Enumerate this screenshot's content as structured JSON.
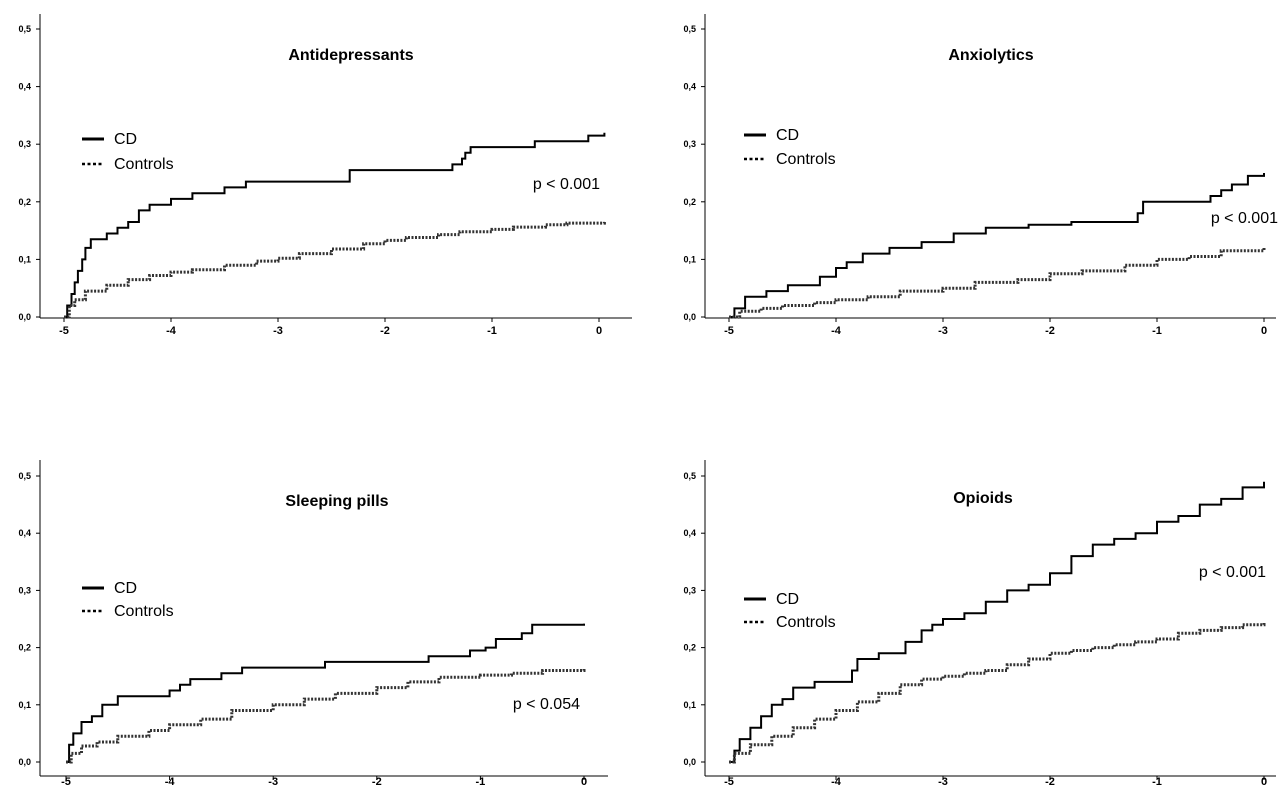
{
  "chart_data": [
    {
      "type": "line",
      "title": "Antidepressants",
      "annotation": "p < 0.001",
      "xlim": [
        -5,
        0
      ],
      "ylim": [
        0,
        0.5
      ],
      "x_ticks": [
        "-5",
        "-4",
        "-3",
        "-2",
        "-1",
        "0"
      ],
      "y_ticks": [
        "0,0",
        "0,1",
        "0,2",
        "0,3",
        "0,4",
        "0,5"
      ],
      "legend": [
        "CD",
        "Controls"
      ],
      "series": [
        {
          "name": "CD",
          "style": "solid",
          "x": [
            -5.0,
            -4.97,
            -4.93,
            -4.9,
            -4.87,
            -4.83,
            -4.8,
            -4.75,
            -4.6,
            -4.5,
            -4.4,
            -4.3,
            -4.2,
            -4.0,
            -3.8,
            -3.5,
            -3.3,
            -3.0,
            -2.5,
            -2.33,
            -2.0,
            -1.7,
            -1.37,
            -1.28,
            -1.25,
            -1.2,
            -1.0,
            -0.6,
            -0.3,
            -0.1,
            0.05
          ],
          "y": [
            0.0,
            0.02,
            0.04,
            0.06,
            0.08,
            0.1,
            0.12,
            0.135,
            0.145,
            0.155,
            0.165,
            0.185,
            0.195,
            0.205,
            0.215,
            0.225,
            0.235,
            0.235,
            0.235,
            0.255,
            0.255,
            0.255,
            0.265,
            0.275,
            0.285,
            0.295,
            0.295,
            0.305,
            0.305,
            0.315,
            0.32
          ]
        },
        {
          "name": "Controls",
          "style": "dotted",
          "x": [
            -5.0,
            -4.95,
            -4.9,
            -4.8,
            -4.6,
            -4.4,
            -4.2,
            -4.0,
            -3.8,
            -3.5,
            -3.2,
            -3.0,
            -2.8,
            -2.5,
            -2.2,
            -2.0,
            -1.8,
            -1.5,
            -1.3,
            -1.0,
            -0.8,
            -0.5,
            -0.3,
            0.05
          ],
          "y": [
            0.0,
            0.02,
            0.03,
            0.045,
            0.055,
            0.065,
            0.072,
            0.078,
            0.082,
            0.09,
            0.097,
            0.102,
            0.11,
            0.118,
            0.127,
            0.133,
            0.138,
            0.143,
            0.148,
            0.152,
            0.156,
            0.16,
            0.163,
            0.165
          ]
        }
      ]
    },
    {
      "type": "line",
      "title": "Anxiolytics",
      "annotation": "p < 0.001",
      "xlim": [
        -5,
        0
      ],
      "ylim": [
        0,
        0.5
      ],
      "x_ticks": [
        "-5",
        "-4",
        "-3",
        "-2",
        "-1",
        "0"
      ],
      "y_ticks": [
        "0,0",
        "0,1",
        "0,2",
        "0,3",
        "0,4",
        "0,5"
      ],
      "legend": [
        "CD",
        "Controls"
      ],
      "series": [
        {
          "name": "CD",
          "style": "solid",
          "x": [
            -5.0,
            -4.95,
            -4.85,
            -4.65,
            -4.45,
            -4.15,
            -4.0,
            -3.9,
            -3.75,
            -3.5,
            -3.2,
            -2.9,
            -2.6,
            -2.2,
            -1.8,
            -1.4,
            -1.18,
            -1.13,
            -0.8,
            -0.5,
            -0.4,
            -0.3,
            -0.15,
            0.0
          ],
          "y": [
            0.0,
            0.015,
            0.035,
            0.045,
            0.055,
            0.07,
            0.085,
            0.095,
            0.11,
            0.12,
            0.13,
            0.145,
            0.155,
            0.16,
            0.165,
            0.165,
            0.18,
            0.2,
            0.2,
            0.21,
            0.22,
            0.23,
            0.245,
            0.25
          ]
        },
        {
          "name": "Controls",
          "style": "dotted",
          "x": [
            -5.0,
            -4.9,
            -4.7,
            -4.5,
            -4.2,
            -4.0,
            -3.7,
            -3.4,
            -3.0,
            -2.7,
            -2.3,
            -2.0,
            -1.7,
            -1.3,
            -1.0,
            -0.7,
            -0.4,
            0.0
          ],
          "y": [
            0.0,
            0.01,
            0.015,
            0.02,
            0.025,
            0.03,
            0.035,
            0.045,
            0.05,
            0.06,
            0.065,
            0.075,
            0.08,
            0.09,
            0.1,
            0.105,
            0.115,
            0.12
          ]
        }
      ]
    },
    {
      "type": "line",
      "title": "Sleeping pills",
      "annotation": "p < 0.054",
      "xlim": [
        -5,
        0
      ],
      "ylim": [
        0,
        0.5
      ],
      "x_ticks": [
        "-5",
        "-4",
        "-3",
        "-2",
        "-1",
        "0"
      ],
      "y_ticks": [
        "0,0",
        "0,1",
        "0,2",
        "0,3",
        "0,4",
        "0,5"
      ],
      "legend": [
        "CD",
        "Controls"
      ],
      "series": [
        {
          "name": "CD",
          "style": "solid",
          "x": [
            -5.0,
            -4.97,
            -4.93,
            -4.85,
            -4.75,
            -4.65,
            -4.5,
            -4.3,
            -4.0,
            -3.9,
            -3.8,
            -3.5,
            -3.3,
            -3.0,
            -2.5,
            -2.0,
            -1.5,
            -1.1,
            -0.95,
            -0.85,
            -0.6,
            -0.5,
            -0.2,
            0.0
          ],
          "y": [
            0.0,
            0.03,
            0.05,
            0.07,
            0.08,
            0.1,
            0.115,
            0.115,
            0.125,
            0.135,
            0.145,
            0.155,
            0.165,
            0.165,
            0.175,
            0.175,
            0.185,
            0.195,
            0.2,
            0.215,
            0.225,
            0.24,
            0.24,
            0.242
          ]
        },
        {
          "name": "Controls",
          "style": "dotted",
          "x": [
            -5.0,
            -4.95,
            -4.85,
            -4.7,
            -4.5,
            -4.2,
            -4.0,
            -3.7,
            -3.4,
            -3.0,
            -2.7,
            -2.4,
            -2.0,
            -1.7,
            -1.4,
            -1.0,
            -0.7,
            -0.4,
            0.0
          ],
          "y": [
            0.0,
            0.015,
            0.028,
            0.035,
            0.045,
            0.055,
            0.065,
            0.075,
            0.09,
            0.1,
            0.11,
            0.12,
            0.13,
            0.14,
            0.148,
            0.152,
            0.155,
            0.16,
            0.165
          ]
        }
      ]
    },
    {
      "type": "line",
      "title": "Opioids",
      "annotation": "p < 0.001",
      "xlim": [
        -5,
        0
      ],
      "ylim": [
        0,
        0.5
      ],
      "x_ticks": [
        "-5",
        "-4",
        "-3",
        "-2",
        "-1",
        "0"
      ],
      "y_ticks": [
        "0,0",
        "0,1",
        "0,2",
        "0,3",
        "0,4",
        "0,5"
      ],
      "legend": [
        "CD",
        "Controls"
      ],
      "series": [
        {
          "name": "CD",
          "style": "solid",
          "x": [
            -5.0,
            -4.95,
            -4.9,
            -4.8,
            -4.7,
            -4.6,
            -4.5,
            -4.4,
            -4.2,
            -3.9,
            -3.85,
            -3.8,
            -3.6,
            -3.35,
            -3.2,
            -3.1,
            -3.0,
            -2.8,
            -2.6,
            -2.4,
            -2.3,
            -2.2,
            -2.0,
            -1.8,
            -1.6,
            -1.4,
            -1.2,
            -1.0,
            -0.8,
            -0.6,
            -0.4,
            -0.2,
            0.0
          ],
          "y": [
            0.0,
            0.02,
            0.04,
            0.06,
            0.08,
            0.1,
            0.11,
            0.13,
            0.14,
            0.14,
            0.16,
            0.18,
            0.19,
            0.21,
            0.23,
            0.24,
            0.25,
            0.26,
            0.28,
            0.3,
            0.3,
            0.31,
            0.33,
            0.36,
            0.38,
            0.39,
            0.4,
            0.42,
            0.43,
            0.45,
            0.46,
            0.48,
            0.49
          ]
        },
        {
          "name": "Controls",
          "style": "dotted",
          "x": [
            -5.0,
            -4.95,
            -4.8,
            -4.6,
            -4.4,
            -4.2,
            -4.0,
            -3.8,
            -3.6,
            -3.4,
            -3.2,
            -3.0,
            -2.8,
            -2.6,
            -2.4,
            -2.2,
            -2.0,
            -1.8,
            -1.6,
            -1.4,
            -1.2,
            -1.0,
            -0.8,
            -0.6,
            -0.4,
            -0.2,
            0.0
          ],
          "y": [
            0.0,
            0.015,
            0.03,
            0.045,
            0.06,
            0.075,
            0.09,
            0.105,
            0.12,
            0.135,
            0.145,
            0.15,
            0.155,
            0.16,
            0.17,
            0.18,
            0.19,
            0.195,
            0.2,
            0.205,
            0.21,
            0.215,
            0.225,
            0.23,
            0.235,
            0.24,
            0.245
          ]
        }
      ]
    }
  ]
}
